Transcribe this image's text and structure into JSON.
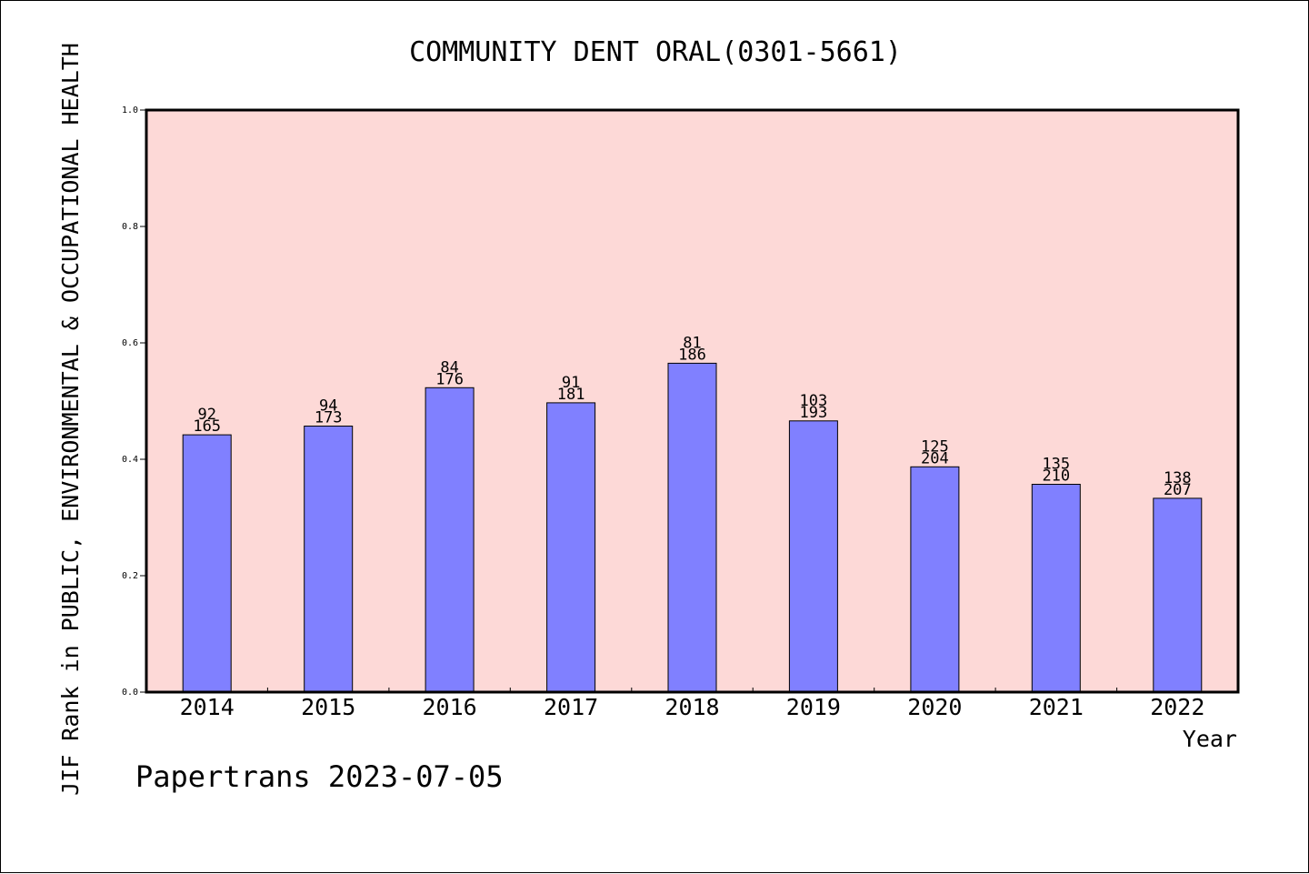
{
  "chart_data": {
    "type": "bar",
    "title": "COMMUNITY DENT ORAL(0301-5661)",
    "xlabel": "Year",
    "ylabel": "JIF Rank in PUBLIC, ENVIRONMENTAL & OCCUPATIONAL HEALTH",
    "ylim": [
      0,
      1.0
    ],
    "yticks": [
      "0.0",
      "0.2",
      "0.4",
      "0.6",
      "0.8",
      "1.0"
    ],
    "grid": false,
    "categories": [
      "2014",
      "2015",
      "2016",
      "2017",
      "2018",
      "2019",
      "2020",
      "2021",
      "2022"
    ],
    "values": [
      0.442,
      0.457,
      0.523,
      0.497,
      0.565,
      0.466,
      0.387,
      0.357,
      0.333
    ],
    "labels_rank": [
      "92",
      "94",
      "84",
      "91",
      "81",
      "103",
      "125",
      "135",
      "138"
    ],
    "labels_total": [
      "165",
      "173",
      "176",
      "181",
      "186",
      "193",
      "204",
      "210",
      "207"
    ]
  },
  "footer": "Papertrans 2023-07-05",
  "colors": {
    "plot_background": "#fdd9d7",
    "bar_fill": "#8080ff",
    "axis": "#000000"
  }
}
